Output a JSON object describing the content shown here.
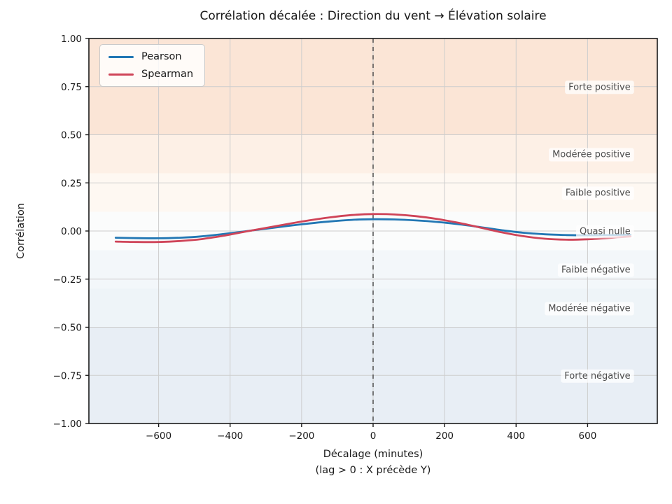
{
  "chart_data": {
    "type": "line",
    "title": "Corrélation décalée : Direction du vent → Élévation solaire",
    "xlabel": "Décalage (minutes)",
    "xlabel_note": "(lag > 0 : X précède Y)",
    "ylabel": "Corrélation",
    "xlim": [
      -795,
      795
    ],
    "ylim": [
      -1,
      1
    ],
    "x_ticks": [
      -600,
      -400,
      -200,
      0,
      200,
      400,
      600
    ],
    "x_tick_labels": [
      "−600",
      "−400",
      "−200",
      "0",
      "200",
      "400",
      "600"
    ],
    "y_ticks": [
      1,
      0.75,
      0.5,
      0.25,
      0,
      -0.25,
      -0.5,
      -0.75,
      -1
    ],
    "y_tick_labels": [
      "1.00",
      "0.75",
      "0.50",
      "0.25",
      "0.00",
      "−0.25",
      "−0.50",
      "−0.75",
      "−1.00"
    ],
    "grid": true,
    "grid_color": "#cdcdcd",
    "zero_lag_line": {
      "x": 0,
      "style": "dashed",
      "color": "#4d4d4d"
    },
    "legend": {
      "position": "upper-left"
    },
    "series": [
      {
        "name": "Pearson",
        "color": "#2277b4",
        "points": [
          [
            -720,
            -0.035
          ],
          [
            -660,
            -0.037
          ],
          [
            -600,
            -0.038
          ],
          [
            -540,
            -0.035
          ],
          [
            -480,
            -0.028
          ],
          [
            -420,
            -0.016
          ],
          [
            -360,
            -0.002
          ],
          [
            -300,
            0.012
          ],
          [
            -240,
            0.026
          ],
          [
            -180,
            0.039
          ],
          [
            -120,
            0.05
          ],
          [
            -60,
            0.058
          ],
          [
            0,
            0.061
          ],
          [
            60,
            0.06
          ],
          [
            120,
            0.055
          ],
          [
            180,
            0.047
          ],
          [
            240,
            0.035
          ],
          [
            300,
            0.02
          ],
          [
            360,
            0.004
          ],
          [
            420,
            -0.009
          ],
          [
            480,
            -0.017
          ],
          [
            540,
            -0.021
          ],
          [
            600,
            -0.022
          ],
          [
            660,
            -0.021
          ],
          [
            720,
            -0.019
          ]
        ]
      },
      {
        "name": "Spearman",
        "color": "#cf4458",
        "points": [
          [
            -720,
            -0.055
          ],
          [
            -660,
            -0.057
          ],
          [
            -600,
            -0.057
          ],
          [
            -540,
            -0.052
          ],
          [
            -480,
            -0.042
          ],
          [
            -420,
            -0.025
          ],
          [
            -360,
            -0.004
          ],
          [
            -300,
            0.016
          ],
          [
            -240,
            0.036
          ],
          [
            -180,
            0.055
          ],
          [
            -120,
            0.071
          ],
          [
            -60,
            0.083
          ],
          [
            0,
            0.088
          ],
          [
            60,
            0.086
          ],
          [
            120,
            0.077
          ],
          [
            180,
            0.062
          ],
          [
            240,
            0.042
          ],
          [
            300,
            0.018
          ],
          [
            360,
            -0.007
          ],
          [
            420,
            -0.027
          ],
          [
            480,
            -0.04
          ],
          [
            540,
            -0.045
          ],
          [
            600,
            -0.043
          ],
          [
            660,
            -0.036
          ],
          [
            720,
            -0.028
          ]
        ]
      }
    ],
    "bands": [
      {
        "label": "Forte positive",
        "from": 0.5,
        "to": 1.0,
        "label_y": 0.75,
        "color": "#fbe5d6"
      },
      {
        "label": "Modérée positive",
        "from": 0.3,
        "to": 0.5,
        "label_y": 0.4,
        "color": "#fdf0e6"
      },
      {
        "label": "Faible positive",
        "from": 0.1,
        "to": 0.3,
        "label_y": 0.2,
        "color": "#fef8f2"
      },
      {
        "label": "Quasi nulle",
        "from": -0.1,
        "to": 0.1,
        "label_y": 0.0,
        "color": "#fbfcfc"
      },
      {
        "label": "Faible négative",
        "from": -0.3,
        "to": -0.1,
        "label_y": -0.2,
        "color": "#f3f7fa"
      },
      {
        "label": "Modérée négative",
        "from": -0.5,
        "to": -0.3,
        "label_y": -0.4,
        "color": "#eef4f8"
      },
      {
        "label": "Forte négative",
        "from": -1.0,
        "to": -0.5,
        "label_y": -0.75,
        "color": "#e8eef5"
      }
    ],
    "band_label_x": 720,
    "band_label_color": "#4d4d4d"
  }
}
